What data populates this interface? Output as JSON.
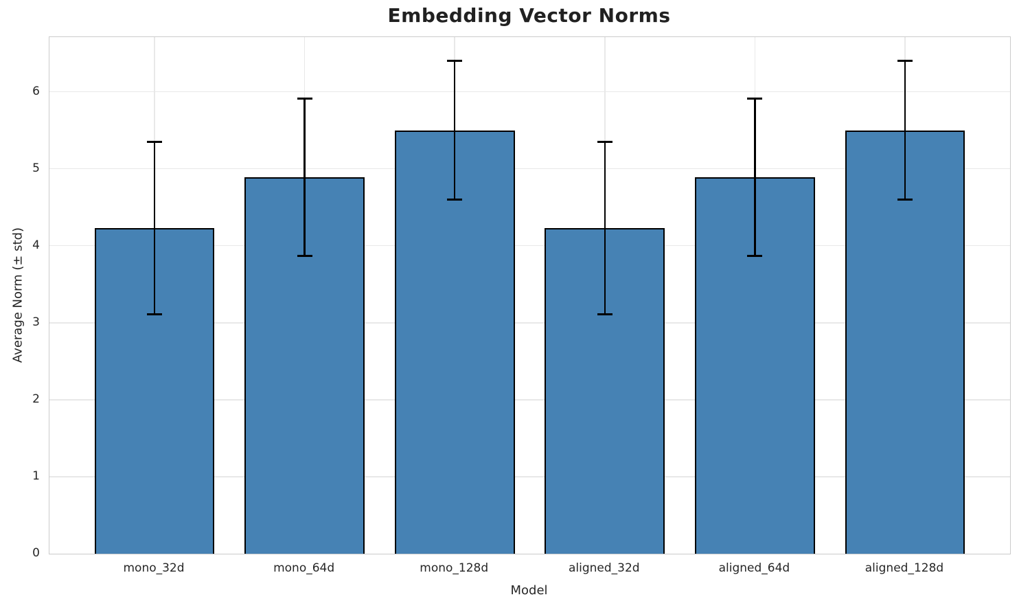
{
  "chart_data": {
    "type": "bar",
    "title": "Embedding Vector Norms",
    "xlabel": "Model",
    "ylabel": "Average Norm (± std)",
    "categories": [
      "mono_32d",
      "mono_64d",
      "mono_128d",
      "aligned_32d",
      "aligned_64d",
      "aligned_128d"
    ],
    "series": [
      {
        "name": "Average Norm",
        "values": [
          4.23,
          4.89,
          5.5,
          4.23,
          4.89,
          5.5
        ],
        "errors": [
          1.12,
          1.02,
          0.9,
          1.12,
          1.02,
          0.9
        ]
      }
    ],
    "yticks": [
      0,
      1,
      2,
      3,
      4,
      5,
      6
    ],
    "ylim": [
      0,
      6.71
    ],
    "xlim_units": [
      -0.7,
      5.7
    ],
    "bar_width_units": 0.8,
    "grid": "horizontal and vertical light gridlines",
    "legend_position": "none",
    "colors": {
      "bar_fill": "#4682b4",
      "bar_edge": "#000000",
      "error_bar": "#000000",
      "gridline": "#e8e8e8",
      "spine": "#cbcbcb",
      "tick_text": "#262626",
      "title_text": "#212121",
      "background": "#ffffff"
    }
  }
}
